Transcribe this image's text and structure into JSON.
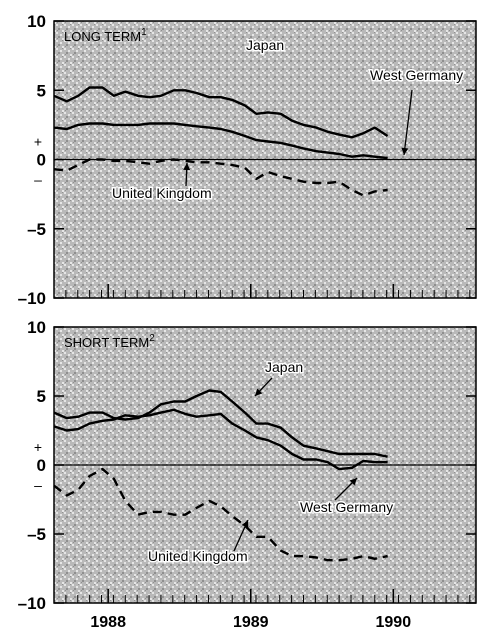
{
  "chart_data": [
    {
      "type": "line",
      "panel_label": "LONG TERM",
      "panel_label_sup": "1",
      "ylim": [
        -10,
        10
      ],
      "y_ticks": [
        10,
        5,
        0,
        -5,
        -10
      ],
      "y_sign_labels": {
        "plus": "+",
        "minus": "–"
      },
      "x_ticks": [
        {
          "value": 1988.0,
          "label": "1988"
        },
        {
          "value": 1989.0,
          "label": "1989"
        },
        {
          "value": 1990.0,
          "label": "1990"
        }
      ],
      "xlim": [
        1987.62,
        1990.58
      ],
      "series": [
        {
          "name": "Japan",
          "style": "solid",
          "x": [
            1987.62,
            1987.71,
            1987.79,
            1987.87,
            1987.96,
            1988.04,
            1988.12,
            1988.21,
            1988.29,
            1988.37,
            1988.46,
            1988.54,
            1988.62,
            1988.71,
            1988.79,
            1988.87,
            1988.96,
            1989.04,
            1989.12,
            1989.21,
            1989.29,
            1989.37,
            1989.46,
            1989.54,
            1989.62,
            1989.71,
            1989.79,
            1989.87,
            1989.96
          ],
          "values": [
            4.6,
            4.2,
            4.6,
            5.2,
            5.2,
            4.6,
            4.9,
            4.6,
            4.5,
            4.6,
            5.0,
            5.0,
            4.8,
            4.5,
            4.5,
            4.3,
            3.9,
            3.3,
            3.4,
            3.3,
            2.8,
            2.5,
            2.3,
            2.0,
            1.8,
            1.6,
            1.9,
            2.3,
            1.7
          ]
        },
        {
          "name": "West Germany",
          "style": "solid",
          "x": [
            1987.62,
            1987.71,
            1987.79,
            1987.87,
            1987.96,
            1988.04,
            1988.12,
            1988.21,
            1988.29,
            1988.37,
            1988.46,
            1988.54,
            1988.62,
            1988.71,
            1988.79,
            1988.87,
            1988.96,
            1989.04,
            1989.12,
            1989.21,
            1989.29,
            1989.37,
            1989.46,
            1989.54,
            1989.62,
            1989.71,
            1989.79,
            1989.87,
            1989.96
          ],
          "values": [
            2.3,
            2.2,
            2.5,
            2.6,
            2.6,
            2.5,
            2.5,
            2.5,
            2.6,
            2.6,
            2.6,
            2.5,
            2.4,
            2.3,
            2.2,
            2.0,
            1.7,
            1.4,
            1.3,
            1.2,
            1.0,
            0.8,
            0.6,
            0.5,
            0.4,
            0.2,
            0.3,
            0.2,
            0.1
          ]
        },
        {
          "name": "United Kingdom",
          "style": "dashed",
          "x": [
            1987.62,
            1987.71,
            1987.79,
            1987.87,
            1987.96,
            1988.04,
            1988.12,
            1988.21,
            1988.29,
            1988.37,
            1988.46,
            1988.54,
            1988.62,
            1988.71,
            1988.79,
            1988.87,
            1988.96,
            1989.04,
            1989.12,
            1989.21,
            1989.29,
            1989.37,
            1989.46,
            1989.54,
            1989.62,
            1989.71,
            1989.79,
            1989.87,
            1989.96
          ],
          "values": [
            -0.7,
            -0.8,
            -0.4,
            0.0,
            0.0,
            -0.1,
            -0.1,
            -0.2,
            -0.3,
            -0.1,
            0.0,
            -0.1,
            -0.2,
            -0.2,
            -0.3,
            -0.4,
            -0.6,
            -1.4,
            -0.9,
            -1.2,
            -1.4,
            -1.6,
            -1.7,
            -1.7,
            -1.6,
            -2.2,
            -2.6,
            -2.3,
            -2.2
          ]
        }
      ],
      "annotations": [
        {
          "text": "Japan",
          "series": "Japan"
        },
        {
          "text": "West Germany",
          "series": "West Germany"
        },
        {
          "text": "United Kingdom",
          "series": "United Kingdom"
        }
      ],
      "grid": false
    },
    {
      "type": "line",
      "panel_label": "SHORT TERM",
      "panel_label_sup": "2",
      "ylim": [
        -10,
        10
      ],
      "y_ticks": [
        10,
        5,
        0,
        -5,
        -10
      ],
      "y_sign_labels": {
        "plus": "+",
        "minus": "–"
      },
      "x_ticks": [
        {
          "value": 1988.0,
          "label": "1988"
        },
        {
          "value": 1989.0,
          "label": "1989"
        },
        {
          "value": 1990.0,
          "label": "1990"
        }
      ],
      "xlim": [
        1987.62,
        1990.58
      ],
      "series": [
        {
          "name": "Japan",
          "style": "solid",
          "x": [
            1987.62,
            1987.71,
            1987.79,
            1987.87,
            1987.96,
            1988.04,
            1988.12,
            1988.21,
            1988.29,
            1988.37,
            1988.46,
            1988.54,
            1988.62,
            1988.71,
            1988.79,
            1988.87,
            1988.96,
            1989.04,
            1989.12,
            1989.21,
            1989.29,
            1989.37,
            1989.46,
            1989.54,
            1989.62,
            1989.71,
            1989.79,
            1989.87,
            1989.96
          ],
          "values": [
            3.8,
            3.4,
            3.5,
            3.8,
            3.8,
            3.4,
            3.3,
            3.4,
            3.8,
            4.4,
            4.6,
            4.6,
            5.0,
            5.4,
            5.3,
            4.6,
            3.8,
            3.0,
            3.0,
            2.7,
            2.0,
            1.4,
            1.2,
            1.0,
            0.8,
            0.8,
            0.8,
            0.8,
            0.6
          ]
        },
        {
          "name": "West Germany",
          "style": "solid",
          "x": [
            1987.62,
            1987.71,
            1987.79,
            1987.87,
            1987.96,
            1988.04,
            1988.12,
            1988.21,
            1988.29,
            1988.37,
            1988.46,
            1988.54,
            1988.62,
            1988.71,
            1988.79,
            1988.87,
            1988.96,
            1989.04,
            1989.12,
            1989.21,
            1989.29,
            1989.37,
            1989.46,
            1989.54,
            1989.62,
            1989.71,
            1989.79,
            1989.87,
            1989.96
          ],
          "values": [
            2.8,
            2.5,
            2.6,
            3.0,
            3.2,
            3.3,
            3.6,
            3.5,
            3.6,
            3.8,
            4.0,
            3.7,
            3.5,
            3.6,
            3.7,
            3.0,
            2.5,
            2.0,
            1.8,
            1.4,
            0.8,
            0.4,
            0.4,
            0.2,
            -0.3,
            -0.2,
            0.3,
            0.2,
            0.2
          ]
        },
        {
          "name": "United Kingdom",
          "style": "dashed",
          "x": [
            1987.62,
            1987.71,
            1987.79,
            1987.87,
            1987.96,
            1988.04,
            1988.12,
            1988.21,
            1988.29,
            1988.37,
            1988.46,
            1988.54,
            1988.62,
            1988.71,
            1988.79,
            1988.87,
            1988.96,
            1989.04,
            1989.12,
            1989.21,
            1989.29,
            1989.37,
            1989.46,
            1989.54,
            1989.62,
            1989.71,
            1989.79,
            1989.87,
            1989.96
          ],
          "values": [
            -1.5,
            -2.2,
            -1.8,
            -0.8,
            -0.3,
            -1.0,
            -2.6,
            -3.6,
            -3.4,
            -3.4,
            -3.6,
            -3.6,
            -3.1,
            -2.6,
            -3.0,
            -3.7,
            -4.4,
            -5.2,
            -5.2,
            -6.2,
            -6.6,
            -6.6,
            -6.7,
            -6.9,
            -6.9,
            -6.8,
            -6.6,
            -6.8,
            -6.6
          ]
        }
      ],
      "annotations": [
        {
          "text": "Japan",
          "series": "Japan"
        },
        {
          "text": "West Germany",
          "series": "West Germany"
        },
        {
          "text": "United Kingdom",
          "series": "United Kingdom"
        }
      ],
      "grid": false
    }
  ]
}
